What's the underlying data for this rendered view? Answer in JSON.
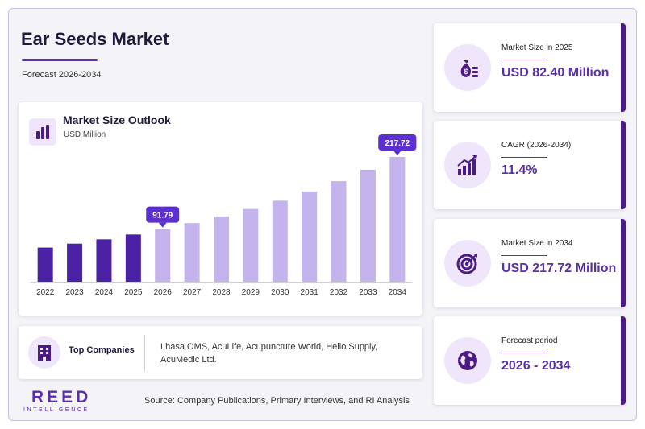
{
  "header": {
    "title": "Ear Seeds Market",
    "subtitle": "Forecast 2026-2034"
  },
  "chart_panel": {
    "title": "Market Size Outlook",
    "unit": "USD Million"
  },
  "chart_data": {
    "type": "bar",
    "title": "Market Size Outlook",
    "ylabel": "USD Million",
    "xlabel": "",
    "categories": [
      "2022",
      "2023",
      "2024",
      "2025",
      "2026",
      "2027",
      "2028",
      "2029",
      "2030",
      "2031",
      "2032",
      "2033",
      "2034"
    ],
    "values": [
      59.6,
      66.4,
      74.0,
      82.4,
      91.79,
      102.3,
      113.9,
      126.9,
      141.4,
      157.5,
      175.4,
      195.4,
      217.72
    ],
    "ylim": [
      0,
      217.72
    ],
    "historical_through": "2025",
    "data_labels": [
      {
        "category": "2026",
        "text": "91.79"
      },
      {
        "category": "2034",
        "text": "217.72"
      }
    ],
    "colors": {
      "historical": "#4b22a3",
      "forecast": "#c4b3ed",
      "callout": "#5b2fd0"
    },
    "grid": false,
    "legend": "none"
  },
  "companies": {
    "label": "Top Companies",
    "text": "Lhasa OMS, AcuLife, Acupuncture World, Helio Supply, AcuMedic Ltd."
  },
  "footer": {
    "logo_main": "REED",
    "logo_sub": "INTELLIGENCE",
    "source": "Source: Company Publications, Primary Interviews, and RI Analysis"
  },
  "kpis": [
    {
      "label": "Market Size in 2025",
      "value": "USD 82.40 Million",
      "icon": "money-bag-icon"
    },
    {
      "label": "CAGR (2026-2034)",
      "value": "11.4%",
      "icon": "growth-chart-icon"
    },
    {
      "label": "Market Size in 2034",
      "value": "USD 217.72 Million",
      "icon": "target-icon"
    },
    {
      "label": "Forecast period",
      "value": "2026 - 2034",
      "icon": "globe-icon"
    }
  ],
  "colors": {
    "accent": "#5b2fa8",
    "dark": "#1e1a3c",
    "kpi_border": "#4b1c86"
  }
}
